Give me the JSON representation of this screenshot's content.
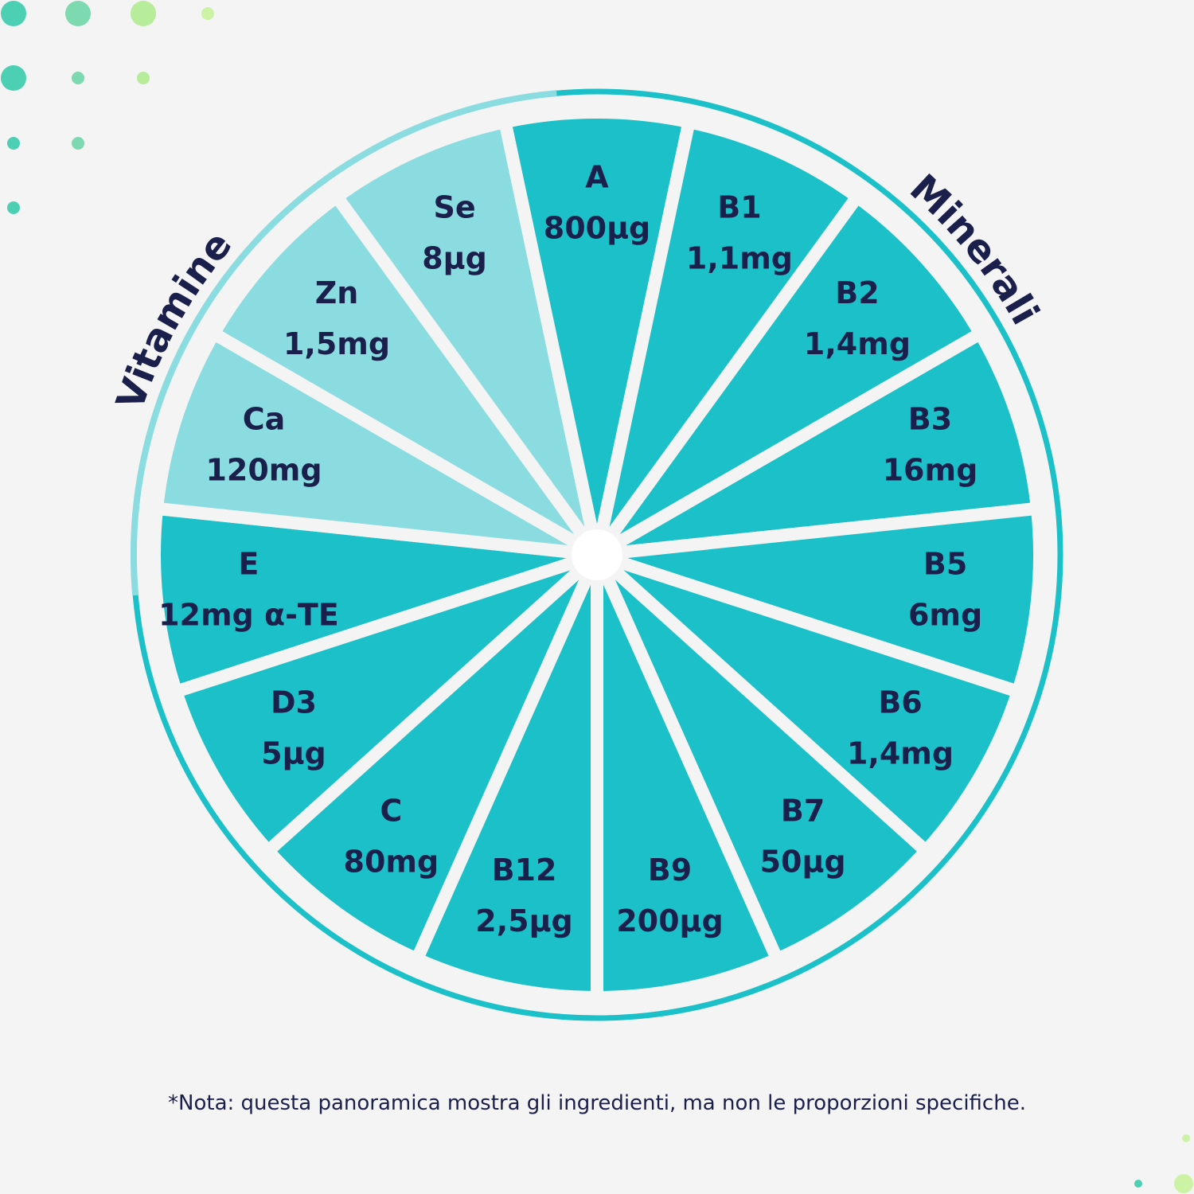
{
  "labels": {
    "left_arc": "Vitamine",
    "right_arc": "Minerali"
  },
  "segments": [
    {
      "name": "A",
      "amount": "800µg",
      "color": "#1cc0c9"
    },
    {
      "name": "B1",
      "amount": "1,1mg",
      "color": "#1cc0c9"
    },
    {
      "name": "B2",
      "amount": "1,4mg",
      "color": "#1cc0c9"
    },
    {
      "name": "B3",
      "amount": "16mg",
      "color": "#1cc0c9"
    },
    {
      "name": "B5",
      "amount": "6mg",
      "color": "#1cc0c9"
    },
    {
      "name": "B6",
      "amount": "1,4mg",
      "color": "#1cc0c9"
    },
    {
      "name": "B7",
      "amount": "50µg",
      "color": "#1cc0c9"
    },
    {
      "name": "B9",
      "amount": "200µg",
      "color": "#1cc0c9"
    },
    {
      "name": "B12",
      "amount": "2,5µg",
      "color": "#1cc0c9"
    },
    {
      "name": "C",
      "amount": "80mg",
      "color": "#1cc0c9"
    },
    {
      "name": "D3",
      "amount": "5µg",
      "color": "#1cc0c9"
    },
    {
      "name": "E",
      "amount": "12mg α-TE",
      "color": "#1cc0c9"
    },
    {
      "name": "Ca",
      "amount": "120mg",
      "color": "#8adce0"
    },
    {
      "name": "Zn",
      "amount": "1,5mg",
      "color": "#8adce0"
    },
    {
      "name": "Se",
      "amount": "8µg",
      "color": "#8adce0"
    }
  ],
  "note": "*Nota: questa panoramica mostra gli ingredienti, ma non le proporzioni specifiche."
}
